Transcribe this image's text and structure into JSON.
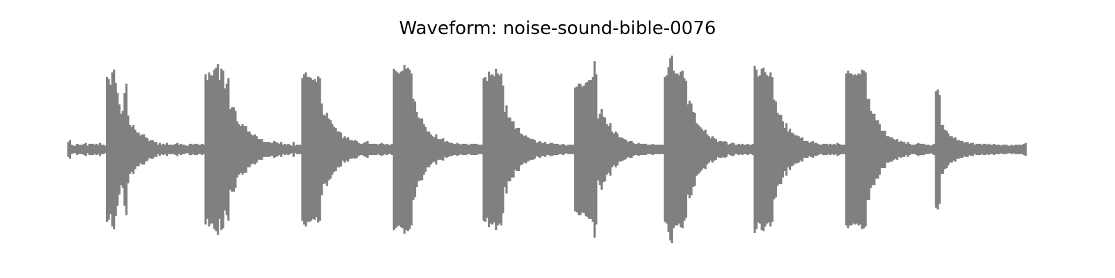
{
  "chart_data": {
    "type": "area",
    "title": "Waveform: noise-sound-bible-0076",
    "xlabel": "",
    "ylabel": "",
    "axes_visible": false,
    "grid": false,
    "legend": "none",
    "color": "#808080",
    "series": [
      {
        "values": [
          0.08,
          0.1,
          0.05,
          0.04,
          0.04,
          0.06,
          0.05,
          0.05,
          0.05,
          0.06,
          0.07,
          0.04,
          0.06,
          0.06,
          0.06,
          0.05,
          0.06,
          0.05,
          0.07,
          0.05,
          0.05,
          0.04,
          0.77,
          0.75,
          0.69,
          0.82,
          0.85,
          0.71,
          0.6,
          0.48,
          0.38,
          0.41,
          0.6,
          0.7,
          0.36,
          0.26,
          0.24,
          0.26,
          0.21,
          0.18,
          0.18,
          0.15,
          0.16,
          0.16,
          0.13,
          0.12,
          0.09,
          0.1,
          0.1,
          0.08,
          0.08,
          0.05,
          0.07,
          0.05,
          0.06,
          0.05,
          0.07,
          0.05,
          0.05,
          0.05,
          0.05,
          0.06,
          0.07,
          0.05,
          0.06,
          0.05,
          0.05,
          0.04,
          0.04,
          0.06,
          0.06,
          0.05,
          0.06,
          0.06,
          0.05,
          0.05,
          0.06,
          0.05,
          0.8,
          0.74,
          0.82,
          0.79,
          0.79,
          0.85,
          0.87,
          0.91,
          0.74,
          0.86,
          0.84,
          0.65,
          0.7,
          0.76,
          0.43,
          0.45,
          0.45,
          0.41,
          0.3,
          0.27,
          0.25,
          0.27,
          0.25,
          0.25,
          0.19,
          0.19,
          0.16,
          0.15,
          0.16,
          0.14,
          0.11,
          0.11,
          0.11,
          0.08,
          0.08,
          0.08,
          0.08,
          0.07,
          0.07,
          0.09,
          0.08,
          0.07,
          0.06,
          0.08,
          0.05,
          0.06,
          0.05,
          0.06,
          0.05,
          0.04,
          0.08,
          0.04,
          0.05,
          0.05,
          0.05,
          0.76,
          0.8,
          0.82,
          0.77,
          0.77,
          0.76,
          0.74,
          0.75,
          0.72,
          0.78,
          0.76,
          0.49,
          0.37,
          0.36,
          0.39,
          0.33,
          0.31,
          0.27,
          0.24,
          0.23,
          0.19,
          0.19,
          0.18,
          0.12,
          0.14,
          0.12,
          0.13,
          0.1,
          0.1,
          0.09,
          0.1,
          0.09,
          0.07,
          0.06,
          0.06,
          0.07,
          0.08,
          0.09,
          0.06,
          0.06,
          0.06,
          0.06,
          0.06,
          0.05,
          0.06,
          0.07,
          0.06,
          0.05,
          0.06,
          0.05,
          0.05,
          0.06,
          0.86,
          0.84,
          0.82,
          0.81,
          0.83,
          0.84,
          0.9,
          0.86,
          0.87,
          0.85,
          0.81,
          0.54,
          0.51,
          0.4,
          0.34,
          0.33,
          0.33,
          0.27,
          0.24,
          0.19,
          0.19,
          0.16,
          0.14,
          0.13,
          0.16,
          0.11,
          0.11,
          0.11,
          0.12,
          0.08,
          0.09,
          0.08,
          0.07,
          0.07,
          0.06,
          0.06,
          0.07,
          0.06,
          0.05,
          0.06,
          0.06,
          0.06,
          0.05,
          0.05,
          0.06,
          0.06,
          0.06,
          0.06,
          0.05,
          0.05,
          0.05,
          0.76,
          0.77,
          0.73,
          0.83,
          0.79,
          0.8,
          0.78,
          0.86,
          0.81,
          0.79,
          0.81,
          0.68,
          0.4,
          0.47,
          0.34,
          0.34,
          0.3,
          0.3,
          0.22,
          0.23,
          0.23,
          0.17,
          0.16,
          0.14,
          0.15,
          0.13,
          0.12,
          0.11,
          0.11,
          0.1,
          0.07,
          0.08,
          0.09,
          0.07,
          0.07,
          0.08,
          0.06,
          0.06,
          0.07,
          0.07,
          0.06,
          0.06,
          0.06,
          0.05,
          0.05,
          0.06,
          0.05,
          0.04,
          0.05,
          0.05,
          0.05,
          0.05,
          0.66,
          0.67,
          0.7,
          0.7,
          0.67,
          0.68,
          0.71,
          0.72,
          0.74,
          0.74,
          0.77,
          0.94,
          0.8,
          0.33,
          0.38,
          0.43,
          0.35,
          0.34,
          0.27,
          0.25,
          0.28,
          0.19,
          0.17,
          0.19,
          0.17,
          0.13,
          0.13,
          0.12,
          0.11,
          0.1,
          0.08,
          0.09,
          0.09,
          0.07,
          0.06,
          0.06,
          0.07,
          0.06,
          0.06,
          0.06,
          0.06,
          0.05,
          0.05,
          0.05,
          0.06,
          0.05,
          0.05,
          0.05,
          0.05,
          0.05,
          0.05,
          0.77,
          0.79,
          0.88,
          0.97,
          1.0,
          0.84,
          0.81,
          0.81,
          0.79,
          0.83,
          0.84,
          0.76,
          0.73,
          0.48,
          0.52,
          0.49,
          0.4,
          0.39,
          0.28,
          0.26,
          0.24,
          0.22,
          0.2,
          0.21,
          0.16,
          0.14,
          0.12,
          0.14,
          0.12,
          0.11,
          0.08,
          0.09,
          0.09,
          0.08,
          0.09,
          0.08,
          0.05,
          0.06,
          0.07,
          0.07,
          0.05,
          0.05,
          0.06,
          0.05,
          0.06,
          0.05,
          0.05,
          0.06,
          0.05,
          0.05,
          0.06,
          0.89,
          0.85,
          0.78,
          0.79,
          0.86,
          0.87,
          0.82,
          0.79,
          0.78,
          0.82,
          0.77,
          0.53,
          0.51,
          0.39,
          0.37,
          0.37,
          0.3,
          0.23,
          0.28,
          0.19,
          0.22,
          0.18,
          0.17,
          0.15,
          0.15,
          0.14,
          0.12,
          0.13,
          0.09,
          0.09,
          0.09,
          0.07,
          0.08,
          0.09,
          0.07,
          0.07,
          0.06,
          0.05,
          0.05,
          0.06,
          0.06,
          0.06,
          0.05,
          0.06,
          0.05,
          0.06,
          0.05,
          0.07,
          0.06,
          0.05,
          0.05,
          0.05,
          0.81,
          0.84,
          0.81,
          0.81,
          0.79,
          0.8,
          0.79,
          0.81,
          0.8,
          0.85,
          0.84,
          0.82,
          0.54,
          0.54,
          0.41,
          0.38,
          0.38,
          0.31,
          0.31,
          0.27,
          0.2,
          0.2,
          0.2,
          0.14,
          0.14,
          0.13,
          0.13,
          0.11,
          0.1,
          0.11,
          0.08,
          0.09,
          0.08,
          0.08,
          0.06,
          0.08,
          0.06,
          0.05,
          0.05,
          0.05,
          0.06,
          0.07,
          0.06,
          0.06,
          0.06,
          0.05,
          0.05,
          0.05,
          0.04,
          0.05,
          0.06,
          0.62,
          0.64,
          0.58,
          0.26,
          0.26,
          0.21,
          0.2,
          0.17,
          0.14,
          0.14,
          0.12,
          0.13,
          0.1,
          0.1,
          0.09,
          0.09,
          0.07,
          0.08,
          0.08,
          0.06,
          0.07,
          0.07,
          0.05,
          0.06,
          0.06,
          0.06,
          0.05,
          0.06,
          0.06,
          0.05,
          0.06,
          0.05,
          0.05,
          0.06,
          0.05,
          0.05,
          0.05,
          0.04,
          0.05,
          0.05,
          0.05,
          0.04,
          0.04,
          0.05,
          0.04,
          0.05,
          0.05,
          0.05,
          0.05,
          0.05,
          0.06,
          0.07
        ]
      }
    ],
    "ylim": [
      -1,
      1
    ]
  }
}
